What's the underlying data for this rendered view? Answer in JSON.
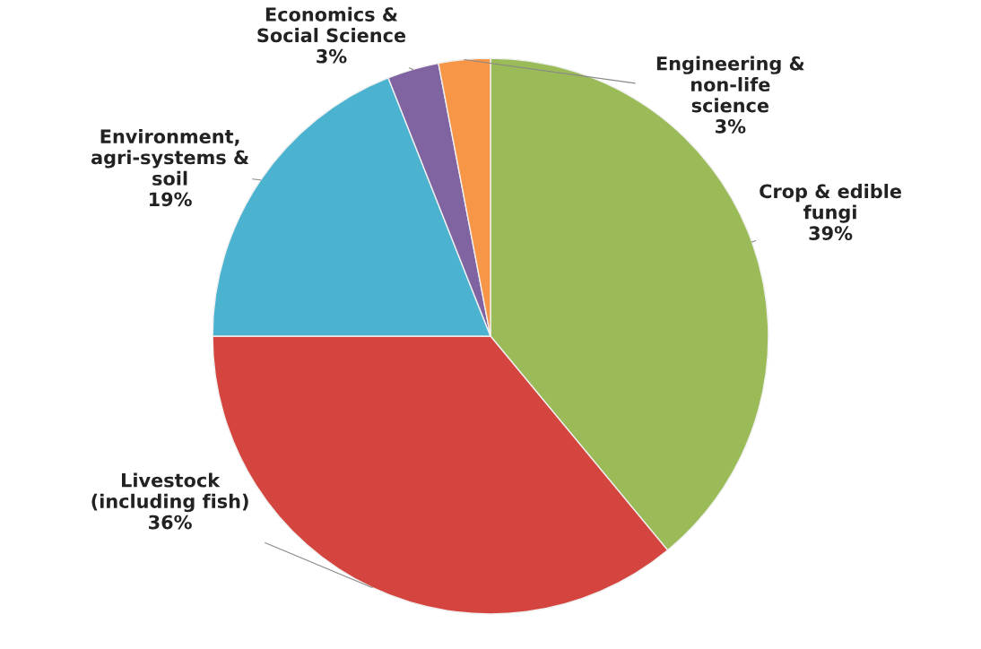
{
  "chart_data": {
    "type": "pie",
    "categories": [
      "Crop & edible\nfungi",
      "Livestock\n(including fish)",
      "Environment,\nagri-systems &\nsoil",
      "Economics &\nSocial Science",
      "Engineering &\nnon-life\nscience"
    ],
    "values": [
      39,
      36,
      19,
      3,
      3
    ],
    "value_labels": [
      "39%",
      "36%",
      "19%",
      "3%",
      "3%"
    ],
    "colors": [
      "#9bbb59",
      "#d4453f",
      "#4bb3d0",
      "#8064a2",
      "#f79646"
    ]
  }
}
